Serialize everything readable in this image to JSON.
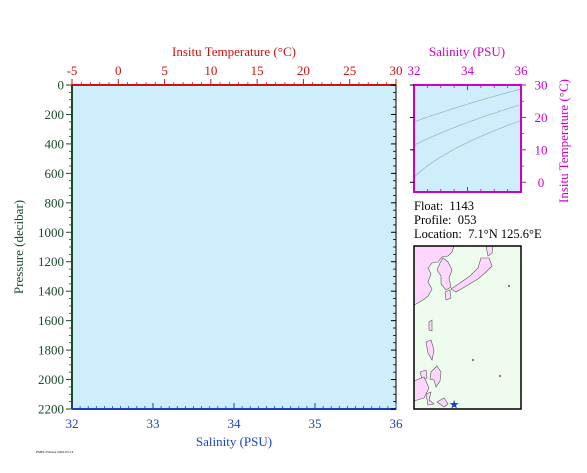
{
  "colors": {
    "temperature": "#cc1111",
    "pressure": "#1a4a2a",
    "salinity": "#1a3fc4",
    "ts_axes": "#cc00cc",
    "plot_bg": "#cdeefa",
    "map_ocean": "#eefcee",
    "map_land": "#ffd6ff",
    "map_coast": "#555555",
    "marker": "#1a3fc4"
  },
  "float_info": {
    "float_label": "Float:",
    "float_value": "1143",
    "profile_label": "Profile:",
    "profile_value": "053",
    "location_label": "Location:",
    "location_value": "7.1°N  125.6°E"
  },
  "footer_text": "PMEL/NOAA 2002-05-14",
  "map": {
    "marker_icon": "star-icon",
    "marker_lat": 7.1,
    "marker_lon": 125.6
  },
  "chart_data": [
    {
      "type": "line",
      "title": "",
      "top_axis": {
        "label": "Insitu Temperature (°C)",
        "range": [
          -5,
          30
        ],
        "ticks": [
          "-5",
          "0",
          "5",
          "10",
          "15",
          "20",
          "25",
          "30"
        ]
      },
      "bottom_axis": {
        "label": "Salinity (PSU)",
        "range": [
          32,
          36
        ],
        "ticks": [
          "32",
          "33",
          "34",
          "35",
          "36"
        ]
      },
      "left_axis": {
        "label": "Pressure (decibar)",
        "range": [
          0,
          2200
        ],
        "inverted": true,
        "ticks": [
          "0",
          "200",
          "400",
          "600",
          "800",
          "1000",
          "1200",
          "1400",
          "1600",
          "1800",
          "2000",
          "2200"
        ]
      },
      "series": [],
      "grid": false
    },
    {
      "type": "scatter",
      "title": "",
      "top_axis": {
        "label": "Salinity (PSU)",
        "range": [
          32,
          36
        ],
        "ticks": [
          "32",
          "34",
          "36"
        ]
      },
      "right_axis": {
        "label": "Insitu Temperature (°C)",
        "range": [
          -3,
          30
        ],
        "ticks": [
          "0",
          "10",
          "20",
          "30"
        ]
      },
      "density_contours": true,
      "series": []
    }
  ]
}
